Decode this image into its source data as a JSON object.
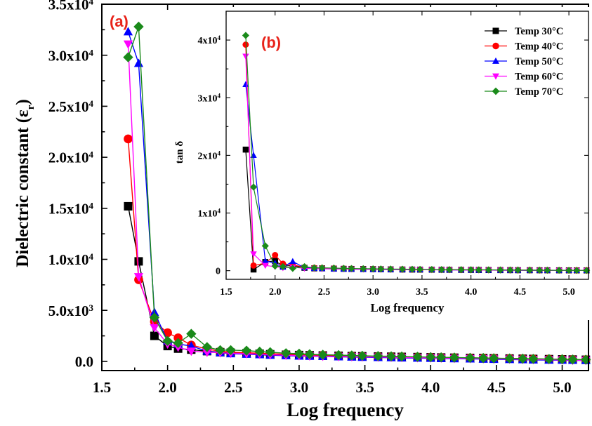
{
  "chart_data": [
    {
      "panel": "(a)",
      "type": "line",
      "xlabel": "Log frequency",
      "ylabel": "Dielectric constant (ε",
      "ylabel_sub": "r",
      "ylabel_close": ")",
      "xlim": [
        1.5,
        5.2
      ],
      "ylim": [
        -900,
        35000
      ],
      "xticks": [
        1.5,
        2.0,
        2.5,
        3.0,
        3.5,
        4.0,
        4.5,
        5.0
      ],
      "xtick_labels": [
        "1.5",
        "2.0",
        "2.5",
        "3.0",
        "3.5",
        "4.0",
        "4.5",
        "5.0"
      ],
      "yticks": [
        0,
        5000,
        10000,
        15000,
        20000,
        25000,
        30000,
        35000
      ],
      "ytick_labels": [
        {
          "base": "0.0",
          "exp": ""
        },
        {
          "base": "5.0x10",
          "exp": "3"
        },
        {
          "base": "1.0x10",
          "exp": "4"
        },
        {
          "base": "1.5x10",
          "exp": "4"
        },
        {
          "base": "2.0x10",
          "exp": "4"
        },
        {
          "base": "2.5x10",
          "exp": "4"
        },
        {
          "base": "3.0x10",
          "exp": "4"
        },
        {
          "base": "3.5x10",
          "exp": "4"
        }
      ],
      "series": [
        {
          "name": "Temp 30°C",
          "color": "#000000",
          "marker": "square",
          "x": [
            1.7,
            1.78,
            1.9,
            2.0,
            2.08,
            2.18,
            2.3,
            2.4,
            2.48,
            2.6,
            2.7,
            2.78,
            2.9,
            3.0,
            3.08,
            3.18,
            3.3,
            3.4,
            3.48,
            3.6,
            3.7,
            3.78,
            3.9,
            4.0,
            4.08,
            4.18,
            4.3,
            4.4,
            4.48,
            4.6,
            4.7,
            4.78,
            4.9,
            5.0,
            5.08,
            5.18
          ],
          "y": [
            15200,
            9800,
            2500,
            1500,
            1250,
            1150,
            1000,
            900,
            850,
            800,
            750,
            700,
            650,
            620,
            600,
            580,
            550,
            520,
            500,
            480,
            460,
            440,
            420,
            400,
            380,
            360,
            340,
            320,
            300,
            280,
            260,
            240,
            220,
            200,
            180,
            160
          ]
        },
        {
          "name": "Temp 40°C",
          "color": "#ff0000",
          "marker": "circle",
          "x": [
            1.7,
            1.78,
            1.9,
            2.0,
            2.08,
            2.18,
            2.3,
            2.4,
            2.48,
            2.6,
            2.7,
            2.78,
            2.9,
            3.0,
            3.08,
            3.18,
            3.3,
            3.4,
            3.48,
            3.6,
            3.7,
            3.78,
            3.9,
            4.0,
            4.08,
            4.18,
            4.3,
            4.4,
            4.48,
            4.6,
            4.7,
            4.78,
            4.9,
            5.0,
            5.08,
            5.18
          ],
          "y": [
            21800,
            8000,
            3900,
            2800,
            2300,
            1600,
            1200,
            1000,
            900,
            850,
            800,
            750,
            700,
            650,
            620,
            600,
            560,
            530,
            500,
            480,
            460,
            440,
            420,
            400,
            380,
            360,
            340,
            320,
            300,
            280,
            260,
            240,
            220,
            200,
            180,
            160
          ]
        },
        {
          "name": "Temp 50°C",
          "color": "#0000ff",
          "marker": "triangle-up",
          "x": [
            1.7,
            1.78,
            1.9,
            2.0,
            2.08,
            2.18,
            2.3,
            2.4,
            2.48,
            2.6,
            2.7,
            2.78,
            2.9,
            3.0,
            3.08,
            3.18,
            3.3,
            3.4,
            3.48,
            3.6,
            3.7,
            3.78,
            3.9,
            4.0,
            4.08,
            4.18,
            4.3,
            4.4,
            4.48,
            4.6,
            4.7,
            4.78,
            4.9,
            5.0,
            5.08,
            5.18
          ],
          "y": [
            32300,
            29200,
            4800,
            2000,
            1700,
            1500,
            1000,
            850,
            750,
            700,
            650,
            600,
            560,
            520,
            500,
            480,
            450,
            420,
            400,
            380,
            360,
            340,
            320,
            300,
            280,
            260,
            240,
            220,
            200,
            180,
            160,
            140,
            120,
            110,
            100,
            90
          ]
        },
        {
          "name": "Temp 60°C",
          "color": "#ff00ff",
          "marker": "triangle-down",
          "x": [
            1.7,
            1.78,
            1.9,
            2.0,
            2.08,
            2.18,
            2.3,
            2.4,
            2.48,
            2.6,
            2.7,
            2.78,
            2.9,
            3.0,
            3.08,
            3.18,
            3.3,
            3.4,
            3.48,
            3.6,
            3.7,
            3.78,
            3.9,
            4.0,
            4.08,
            4.18,
            4.3,
            4.4,
            4.48,
            4.6,
            4.7,
            4.78,
            4.9,
            5.0,
            5.08,
            5.18
          ],
          "y": [
            31100,
            8300,
            3300,
            1700,
            1400,
            1000,
            900,
            850,
            800,
            750,
            700,
            650,
            600,
            560,
            530,
            500,
            480,
            460,
            440,
            420,
            400,
            380,
            360,
            340,
            320,
            300,
            280,
            260,
            240,
            220,
            200,
            180,
            160,
            140,
            120,
            100
          ]
        },
        {
          "name": "Temp 70°C",
          "color": "#1a8a1a",
          "marker": "diamond",
          "x": [
            1.7,
            1.78,
            1.9,
            2.0,
            2.08,
            2.18,
            2.3,
            2.4,
            2.48,
            2.6,
            2.7,
            2.78,
            2.9,
            3.0,
            3.08,
            3.18,
            3.3,
            3.4,
            3.48,
            3.6,
            3.7,
            3.78,
            3.9,
            4.0,
            4.08,
            4.18,
            4.3,
            4.4,
            4.48,
            4.6,
            4.7,
            4.78,
            4.9,
            5.0,
            5.08,
            5.18
          ],
          "y": [
            29800,
            32800,
            4300,
            2000,
            1800,
            2700,
            1400,
            1100,
            1100,
            1050,
            950,
            900,
            800,
            750,
            700,
            650,
            620,
            580,
            550,
            520,
            500,
            480,
            450,
            420,
            400,
            380,
            350,
            330,
            310,
            290,
            270,
            250,
            230,
            210,
            190,
            170
          ]
        }
      ]
    },
    {
      "panel": "(b)",
      "type": "line",
      "xlabel": "Log frequency",
      "ylabel": "tan δ",
      "xlim": [
        1.5,
        5.2
      ],
      "ylim": [
        -1500,
        45000
      ],
      "xticks": [
        1.5,
        2.0,
        2.5,
        3.0,
        3.5,
        4.0,
        4.5,
        5.0
      ],
      "xtick_labels": [
        "1.5",
        "2.0",
        "2.5",
        "3.0",
        "3.5",
        "4.0",
        "4.5",
        "5.0"
      ],
      "yticks": [
        0,
        10000,
        20000,
        30000,
        40000
      ],
      "ytick_labels": [
        {
          "base": "0",
          "exp": ""
        },
        {
          "base": "1x10",
          "exp": "4"
        },
        {
          "base": "2x10",
          "exp": "4"
        },
        {
          "base": "3x10",
          "exp": "4"
        },
        {
          "base": "4x10",
          "exp": "4"
        }
      ],
      "legend_position": "top-right",
      "series": [
        {
          "name": "Temp 30°C",
          "color": "#000000",
          "marker": "square",
          "x": [
            1.7,
            1.78,
            1.9,
            2.0,
            2.08,
            2.18,
            2.3,
            2.4,
            2.48,
            2.6,
            2.7,
            2.78,
            2.9,
            3.0,
            3.08,
            3.18,
            3.3,
            3.4,
            3.48,
            3.6,
            3.7,
            3.78,
            3.9,
            4.0,
            4.08,
            4.18,
            4.3,
            4.4,
            4.48,
            4.6,
            4.7,
            4.78,
            4.9,
            5.0,
            5.08,
            5.18
          ],
          "y": [
            21000,
            200,
            1500,
            1700,
            800,
            900,
            500,
            400,
            400,
            350,
            320,
            300,
            280,
            260,
            240,
            220,
            200,
            190,
            180,
            170,
            160,
            150,
            140,
            130,
            120,
            110,
            100,
            90,
            80,
            75,
            70,
            65,
            60,
            55,
            50,
            45
          ]
        },
        {
          "name": "Temp 40°C",
          "color": "#ff0000",
          "marker": "circle",
          "x": [
            1.7,
            1.78,
            1.9,
            2.0,
            2.08,
            2.18,
            2.3,
            2.4,
            2.48,
            2.6,
            2.7,
            2.78,
            2.9,
            3.0,
            3.08,
            3.18,
            3.3,
            3.4,
            3.48,
            3.6,
            3.7,
            3.78,
            3.9,
            4.0,
            4.08,
            4.18,
            4.3,
            4.4,
            4.48,
            4.6,
            4.7,
            4.78,
            4.9,
            5.0,
            5.08,
            5.18
          ],
          "y": [
            39200,
            900,
            1300,
            2700,
            1200,
            1000,
            600,
            500,
            450,
            400,
            360,
            330,
            300,
            280,
            260,
            240,
            220,
            200,
            190,
            180,
            170,
            160,
            150,
            140,
            130,
            120,
            110,
            100,
            90,
            80,
            75,
            70,
            65,
            60,
            55,
            50
          ]
        },
        {
          "name": "Temp 50°C",
          "color": "#0000ff",
          "marker": "triangle-up",
          "x": [
            1.7,
            1.78,
            1.9,
            2.0,
            2.08,
            2.18,
            2.3,
            2.4,
            2.48,
            2.6,
            2.7,
            2.78,
            2.9,
            3.0,
            3.08,
            3.18,
            3.3,
            3.4,
            3.48,
            3.6,
            3.7,
            3.78,
            3.9,
            4.0,
            4.08,
            4.18,
            4.3,
            4.4,
            4.48,
            4.6,
            4.7,
            4.78,
            4.9,
            5.0,
            5.08,
            5.18
          ],
          "y": [
            32300,
            20000,
            1700,
            1300,
            600,
            1600,
            500,
            400,
            350,
            300,
            280,
            260,
            240,
            220,
            200,
            190,
            180,
            170,
            160,
            150,
            140,
            130,
            120,
            110,
            100,
            90,
            80,
            75,
            70,
            65,
            60,
            55,
            50,
            45,
            40,
            35
          ]
        },
        {
          "name": "Temp 60°C",
          "color": "#ff00ff",
          "marker": "triangle-down",
          "x": [
            1.7,
            1.78,
            1.9,
            2.0,
            2.08,
            2.18,
            2.3,
            2.4,
            2.48,
            2.6,
            2.7,
            2.78,
            2.9,
            3.0,
            3.08,
            3.18,
            3.3,
            3.4,
            3.48,
            3.6,
            3.7,
            3.78,
            3.9,
            4.0,
            4.08,
            4.18,
            4.3,
            4.4,
            4.48,
            4.6,
            4.7,
            4.78,
            4.9,
            5.0,
            5.08,
            5.18
          ],
          "y": [
            37200,
            2900,
            900,
            700,
            500,
            600,
            400,
            350,
            320,
            300,
            280,
            260,
            240,
            220,
            200,
            190,
            180,
            170,
            160,
            150,
            140,
            130,
            120,
            110,
            100,
            90,
            80,
            75,
            70,
            65,
            60,
            55,
            50,
            45,
            40,
            35
          ]
        },
        {
          "name": "Temp 70°C",
          "color": "#1a8a1a",
          "marker": "diamond",
          "x": [
            1.7,
            1.78,
            1.9,
            2.0,
            2.08,
            2.18,
            2.3,
            2.4,
            2.48,
            2.6,
            2.7,
            2.78,
            2.9,
            3.0,
            3.08,
            3.18,
            3.3,
            3.4,
            3.48,
            3.6,
            3.7,
            3.78,
            3.9,
            4.0,
            4.08,
            4.18,
            4.3,
            4.4,
            4.48,
            4.6,
            4.7,
            4.78,
            4.9,
            5.0,
            5.08,
            5.18
          ],
          "y": [
            40800,
            14500,
            4300,
            800,
            700,
            400,
            700,
            500,
            500,
            450,
            400,
            380,
            350,
            320,
            300,
            280,
            260,
            240,
            220,
            200,
            190,
            180,
            170,
            160,
            150,
            140,
            130,
            120,
            110,
            100,
            90,
            80,
            70,
            60,
            50,
            40
          ]
        }
      ]
    }
  ]
}
